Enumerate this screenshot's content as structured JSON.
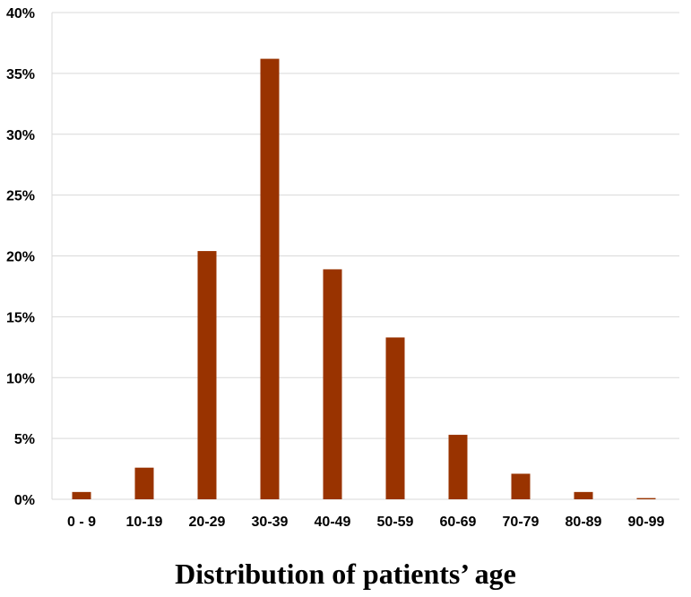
{
  "chart_data": {
    "type": "bar",
    "title": "Distribution of patients’ age",
    "xlabel": "",
    "ylabel": "",
    "categories": [
      "0 - 9",
      "10-19",
      "20-29",
      "30-39",
      "40-49",
      "50-59",
      "60-69",
      "70-79",
      "80-89",
      "90-99"
    ],
    "values": [
      0.6,
      2.6,
      20.4,
      36.2,
      18.9,
      13.3,
      5.3,
      2.1,
      0.6,
      0.1
    ],
    "ylim": [
      0,
      40
    ],
    "yticks": [
      "0%",
      "5%",
      "10%",
      "15%",
      "20%",
      "25%",
      "30%",
      "35%",
      "40%"
    ],
    "grid": true,
    "bar_color": "#993300",
    "gridline_color": "#d9d9d9"
  }
}
